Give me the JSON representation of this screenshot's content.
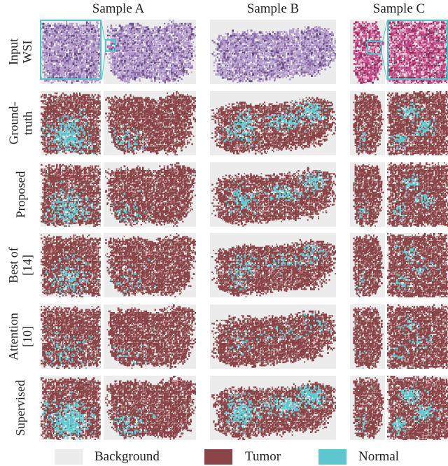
{
  "columns": [
    "Sample A",
    "Sample B",
    "Sample C"
  ],
  "rows": [
    {
      "label": "Input\nWSI",
      "kind": "wsi"
    },
    {
      "label": "Ground-\ntruth",
      "kind": "gt"
    },
    {
      "label": "Proposed",
      "kind": "proposed"
    },
    {
      "label": "Best of\n[14]",
      "kind": "best"
    },
    {
      "label": "Attention\n[10]",
      "kind": "attention"
    },
    {
      "label": "Supervised",
      "kind": "supervised"
    }
  ],
  "legend": [
    {
      "label": "Background",
      "color": "#ececec"
    },
    {
      "label": "Tumor",
      "color": "#8b4448"
    },
    {
      "label": "Normal",
      "color": "#5ec6cf"
    }
  ],
  "colors": {
    "tumor": "#8b4448",
    "normal": "#5ec6cf",
    "background": "#ececec",
    "he_purple": "#a48ac0",
    "he_pink": "#c04a86",
    "zoom_frame": "#4ec3c9"
  }
}
